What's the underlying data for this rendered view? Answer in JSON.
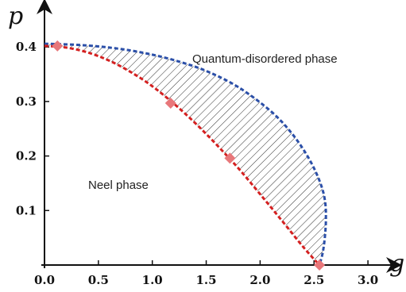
{
  "chart_data": {
    "type": "line",
    "title": "",
    "xlabel": "g",
    "ylabel": "p",
    "xlim": [
      0.0,
      3.15
    ],
    "ylim": [
      0.0,
      0.43
    ],
    "x_ticks": [
      "0.0",
      "0.5",
      "1.0",
      "1.5",
      "2.0",
      "2.5",
      "3.0"
    ],
    "y_ticks": [
      "0.1",
      "0.2",
      "0.3",
      "0.4"
    ],
    "grid": false,
    "legend": "none",
    "region_labels": {
      "neel": "Neel phase",
      "disordered": "Quantum-disordered phase"
    },
    "lower_boundary": {
      "style": "dashed",
      "color": "#d42020",
      "x": [
        0.0,
        0.2,
        0.4,
        0.6,
        0.8,
        1.0,
        1.2,
        1.4,
        1.6,
        1.8,
        2.0,
        2.2,
        2.4,
        2.55
      ],
      "y": [
        0.402,
        0.399,
        0.39,
        0.375,
        0.354,
        0.328,
        0.296,
        0.26,
        0.22,
        0.177,
        0.13,
        0.082,
        0.033,
        0.0
      ]
    },
    "upper_boundary": {
      "style": "dashed",
      "color": "#2b4fa8",
      "x": [
        0.0,
        0.3,
        0.6,
        0.9,
        1.2,
        1.5,
        1.8,
        2.1,
        2.3,
        2.45,
        2.55,
        2.6,
        2.61,
        2.6,
        2.58,
        2.55
      ],
      "y": [
        0.406,
        0.404,
        0.399,
        0.39,
        0.376,
        0.356,
        0.326,
        0.282,
        0.24,
        0.196,
        0.155,
        0.12,
        0.085,
        0.05,
        0.022,
        0.0
      ]
    },
    "markers": {
      "color": "#e8777a",
      "shape": "diamond",
      "points": [
        {
          "x": 0.12,
          "y": 0.402
        },
        {
          "x": 1.17,
          "y": 0.297
        },
        {
          "x": 1.72,
          "y": 0.196
        },
        {
          "x": 2.55,
          "y": 0.0
        }
      ]
    },
    "hatched_region": {
      "between": [
        "lower_boundary",
        "upper_boundary"
      ],
      "pattern": "diagonal-lines"
    }
  }
}
